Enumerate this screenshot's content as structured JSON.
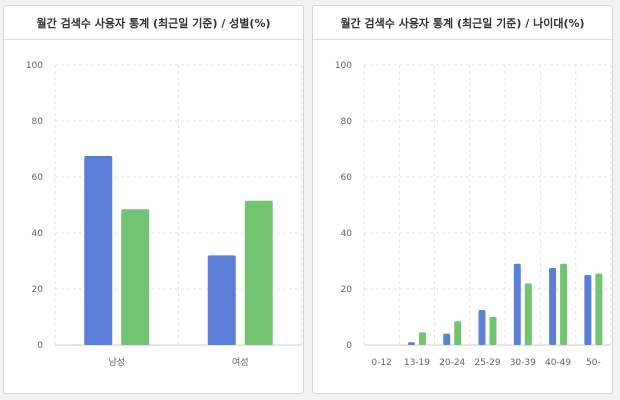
{
  "colors": {
    "series1": "#5b7fd8",
    "series2": "#72c472",
    "grid": "#e3e3e3",
    "axis": "#cccccc"
  },
  "chart_data": [
    {
      "type": "bar",
      "title": "월간 검색수 사용자 통계 (최근일 기준) / 성별(%)",
      "xlabel": "",
      "ylabel": "",
      "ylim": [
        0,
        100
      ],
      "yticks": [
        0,
        20,
        40,
        60,
        80,
        100
      ],
      "categories": [
        "남성",
        "여성"
      ],
      "series": [
        {
          "values": [
            67.5,
            32
          ]
        },
        {
          "values": [
            48.5,
            51.5
          ]
        }
      ],
      "grid": true,
      "legend": "none"
    },
    {
      "type": "bar",
      "title": "월간 검색수 사용자 통계 (최근일 기준) / 나이대(%)",
      "xlabel": "",
      "ylabel": "",
      "ylim": [
        0,
        100
      ],
      "yticks": [
        0,
        20,
        40,
        60,
        80,
        100
      ],
      "categories": [
        "0-12",
        "13-19",
        "20-24",
        "25-29",
        "30-39",
        "40-49",
        "50-"
      ],
      "series": [
        {
          "values": [
            0,
            1,
            4,
            12.5,
            29,
            27.5,
            25
          ]
        },
        {
          "values": [
            0,
            4.5,
            8.5,
            10,
            22,
            29,
            25.5
          ]
        }
      ],
      "grid": true,
      "legend": "none"
    }
  ]
}
